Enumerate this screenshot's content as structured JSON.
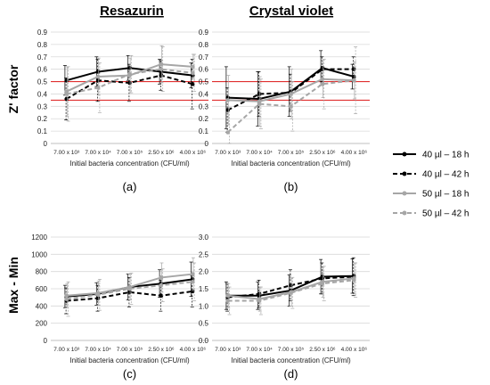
{
  "column_titles": [
    "Resazurin",
    "Crystal violet"
  ],
  "row_labels": [
    "Z' factor",
    "Max - Min"
  ],
  "legend": [
    {
      "label": "40 µl – 18 h",
      "color": "#000000",
      "dash": false
    },
    {
      "label": "40 µl – 42 h",
      "color": "#000000",
      "dash": true
    },
    {
      "label": "50 µl – 18 h",
      "color": "#a6a6a6",
      "dash": false
    },
    {
      "label": "50 µl – 42 h",
      "color": "#a6a6a6",
      "dash": true
    }
  ],
  "chart_data": [
    {
      "type": "line",
      "panel_label": "(a)",
      "categories": [
        "7.00 x 10³",
        "7.00 x 10⁴",
        "7.00 x 10⁵",
        "2.50 x 10⁶",
        "4.00 x 10⁶"
      ],
      "xlabel": "Initial bacteria concentration (CFU/ml)",
      "ylim": [
        0,
        0.9
      ],
      "yticks": [
        "0",
        "0.1",
        "0.2",
        "0.3",
        "0.4",
        "0.5",
        "0.6",
        "0.7",
        "0.8",
        "0.9"
      ],
      "reference_lines": [
        0.5,
        0.35
      ],
      "series": [
        {
          "values": [
            0.51,
            0.58,
            0.61,
            0.58,
            0.55
          ],
          "errors": [
            0.12,
            0.12,
            0.1,
            0.1,
            0.1
          ]
        },
        {
          "values": [
            0.36,
            0.51,
            0.49,
            0.55,
            0.48
          ],
          "errors": [
            0.17,
            0.17,
            0.15,
            0.12,
            0.2
          ]
        },
        {
          "values": [
            0.42,
            0.54,
            0.55,
            0.64,
            0.62
          ],
          "errors": [
            0.2,
            0.15,
            0.14,
            0.15,
            0.1
          ]
        },
        {
          "values": [
            0.4,
            0.45,
            0.56,
            0.6,
            0.57
          ],
          "errors": [
            0.22,
            0.2,
            0.15,
            0.18,
            0.15
          ]
        }
      ]
    },
    {
      "type": "line",
      "panel_label": "(b)",
      "categories": [
        "7.00 x 10³",
        "7.00 x 10⁴",
        "7.00 x 10⁵",
        "2.50 x 10⁶",
        "4.00 x 10⁶"
      ],
      "xlabel": "Initial bacteria concentration (CFU/ml)",
      "ylim": [
        0,
        0.9
      ],
      "yticks": [
        "0",
        "0.1",
        "0.2",
        "0.3",
        "0.4",
        "0.5",
        "0.6",
        "0.7",
        "0.8",
        "0.9"
      ],
      "reference_lines": [
        0.5,
        0.35
      ],
      "series": [
        {
          "values": [
            0.37,
            0.36,
            0.42,
            0.61,
            0.54
          ],
          "errors": [
            0.25,
            0.22,
            0.2,
            0.14,
            0.1
          ]
        },
        {
          "values": [
            0.27,
            0.4,
            0.41,
            0.6,
            0.6
          ],
          "errors": [
            0.18,
            0.18,
            0.15,
            0.1,
            0.1
          ]
        },
        {
          "values": [
            0.35,
            0.34,
            0.4,
            0.52,
            0.51
          ],
          "errors": [
            0.2,
            0.2,
            0.2,
            0.15,
            0.15
          ]
        },
        {
          "values": [
            0.09,
            0.32,
            0.3,
            0.48,
            0.51
          ],
          "errors": [
            0.2,
            0.2,
            0.2,
            0.2,
            0.27
          ]
        }
      ]
    },
    {
      "type": "line",
      "panel_label": "(c)",
      "categories": [
        "7.00 x 10³",
        "7.00 x 10⁴",
        "7.00 x 10⁵",
        "2.50 x 10⁶",
        "4.00 x 10⁶"
      ],
      "xlabel": "Initial bacteria concentration (CFU/ml)",
      "ylim": [
        0,
        1200
      ],
      "yticks": [
        "0",
        "200",
        "400",
        "600",
        "800",
        "1000",
        "1200"
      ],
      "reference_lines": [],
      "series": [
        {
          "values": [
            510,
            540,
            620,
            660,
            710
          ],
          "errors": [
            130,
            130,
            150,
            160,
            200
          ]
        },
        {
          "values": [
            460,
            490,
            560,
            520,
            570
          ],
          "errors": [
            150,
            150,
            170,
            180,
            180
          ]
        },
        {
          "values": [
            520,
            550,
            620,
            730,
            770
          ],
          "errors": [
            140,
            140,
            150,
            170,
            190
          ]
        },
        {
          "values": [
            480,
            530,
            600,
            640,
            680
          ],
          "errors": [
            200,
            180,
            180,
            190,
            220
          ]
        }
      ]
    },
    {
      "type": "line",
      "panel_label": "(d)",
      "categories": [
        "7.00 x 10³",
        "7.00 x 10⁴",
        "7.00 x 10⁵",
        "2.50 x 10⁶",
        "4.00 x 10⁶"
      ],
      "xlabel": "Initial bacteria concentration (CFU/ml)",
      "ylim": [
        0,
        3.0
      ],
      "yticks": [
        "0.0",
        "0.5",
        "1.0",
        "1.5",
        "2.0",
        "2.5",
        "3.0"
      ],
      "reference_lines": [],
      "series": [
        {
          "values": [
            1.3,
            1.3,
            1.45,
            1.85,
            1.87
          ],
          "errors": [
            0.4,
            0.4,
            0.45,
            0.5,
            0.5
          ]
        },
        {
          "values": [
            1.25,
            1.35,
            1.6,
            1.8,
            1.85
          ],
          "errors": [
            0.4,
            0.4,
            0.45,
            0.45,
            0.55
          ]
        },
        {
          "values": [
            1.3,
            1.2,
            1.4,
            1.7,
            1.8
          ],
          "errors": [
            0.35,
            0.35,
            0.4,
            0.45,
            0.45
          ]
        },
        {
          "values": [
            1.15,
            1.15,
            1.38,
            1.65,
            1.75
          ],
          "errors": [
            0.4,
            0.4,
            0.45,
            0.5,
            0.5
          ]
        }
      ]
    }
  ]
}
